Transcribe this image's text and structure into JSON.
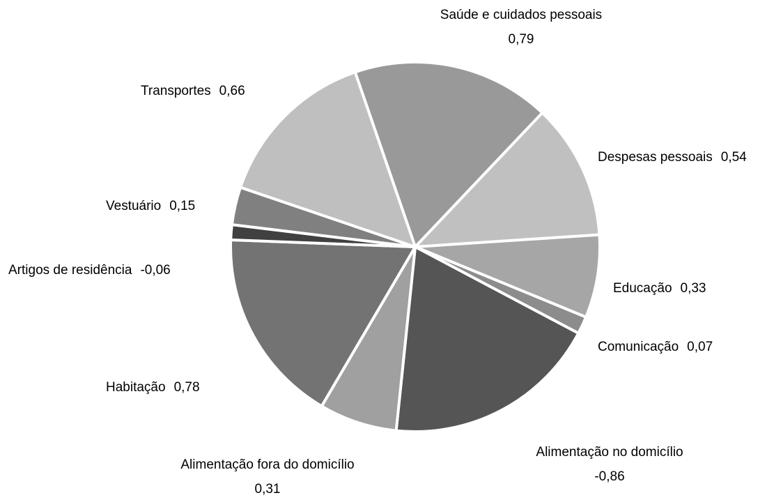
{
  "chart_data": {
    "type": "pie",
    "categories": [
      "Saúde e cuidados pessoais",
      "Despesas pessoais",
      "Educação",
      "Comunicação",
      "Alimentação no domicílio",
      "Alimentação fora do domicílio",
      "Habitação",
      "Artigos de residência",
      "Vestuário",
      "Transportes"
    ],
    "values": [
      0.79,
      0.54,
      0.33,
      0.07,
      -0.86,
      0.31,
      0.78,
      -0.06,
      0.15,
      0.66
    ],
    "value_labels": [
      "0,79",
      "0,54",
      "0,33",
      "0,07",
      "-0,86",
      "0,31",
      "0,78",
      "-0,06",
      "0,15",
      "0,66"
    ],
    "colors": [
      "#999999",
      "#c0c0c0",
      "#a6a6a6",
      "#8c8c8c",
      "#555555",
      "#a0a0a0",
      "#737373",
      "#404040",
      "#808080",
      "#bfbfbf"
    ]
  }
}
